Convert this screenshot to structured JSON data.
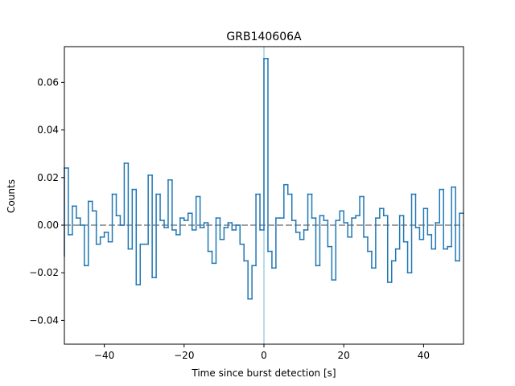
{
  "chart_data": {
    "type": "line",
    "title": "GRB140606A",
    "xlabel": "Time since burst detection [s]",
    "ylabel": "Counts",
    "xlim": [
      -50,
      50
    ],
    "ylim": [
      -0.05,
      0.075
    ],
    "x_ticks": [
      -40,
      -20,
      0,
      20,
      40
    ],
    "x_tick_labels": [
      "−40",
      "−20",
      "0",
      "20",
      "40"
    ],
    "y_ticks": [
      -0.04,
      -0.02,
      0.0,
      0.02,
      0.04,
      0.06
    ],
    "y_tick_labels": [
      "−0.04",
      "−0.02",
      "0.00",
      "0.02",
      "0.04",
      "0.06"
    ],
    "grid": false,
    "legend": "none",
    "step_series": {
      "style": "steps",
      "color": "#1f77b4",
      "x": [
        -50,
        -49,
        -48,
        -47,
        -46,
        -45,
        -44,
        -43,
        -42,
        -41,
        -40,
        -39,
        -38,
        -37,
        -36,
        -35,
        -34,
        -33,
        -32,
        -31,
        -30,
        -29,
        -28,
        -27,
        -26,
        -25,
        -24,
        -23,
        -22,
        -21,
        -20,
        -19,
        -18,
        -17,
        -16,
        -15,
        -14,
        -13,
        -12,
        -11,
        -10,
        -9,
        -8,
        -7,
        -6,
        -5,
        -4,
        -3,
        -2,
        -1,
        0,
        1,
        2,
        3,
        4,
        5,
        6,
        7,
        8,
        9,
        10,
        11,
        12,
        13,
        14,
        15,
        16,
        17,
        18,
        19,
        20,
        21,
        22,
        23,
        24,
        25,
        26,
        27,
        28,
        29,
        30,
        31,
        32,
        33,
        34,
        35,
        36,
        37,
        38,
        39,
        40,
        41,
        42,
        43,
        44,
        45,
        46,
        47,
        48,
        49
      ],
      "y": [
        0.024,
        -0.004,
        0.008,
        0.003,
        0.0,
        -0.017,
        0.01,
        0.006,
        -0.008,
        -0.005,
        -0.003,
        -0.007,
        0.013,
        0.004,
        0.0,
        0.026,
        -0.01,
        0.015,
        -0.025,
        -0.008,
        -0.008,
        0.021,
        -0.022,
        0.013,
        0.002,
        -0.001,
        0.019,
        -0.002,
        -0.004,
        0.003,
        0.002,
        0.005,
        -0.002,
        0.012,
        -0.001,
        0.001,
        -0.011,
        -0.016,
        0.003,
        -0.006,
        -0.001,
        0.001,
        -0.002,
        0.0,
        -0.008,
        -0.015,
        -0.031,
        -0.017,
        0.013,
        -0.002,
        0.07,
        -0.011,
        -0.018,
        0.003,
        0.003,
        0.017,
        0.013,
        0.002,
        -0.003,
        -0.006,
        -0.002,
        0.013,
        0.003,
        -0.017,
        0.004,
        0.002,
        -0.009,
        -0.023,
        0.002,
        0.006,
        0.001,
        -0.005,
        0.003,
        0.004,
        0.012,
        -0.005,
        -0.011,
        -0.018,
        0.003,
        0.007,
        0.004,
        -0.024,
        -0.015,
        -0.01,
        0.004,
        -0.007,
        -0.02,
        0.013,
        -0.001,
        -0.006,
        0.007,
        -0.004,
        -0.01,
        0.001,
        0.015,
        -0.01,
        -0.009,
        0.016,
        -0.015,
        0.005
      ]
    },
    "reference_lines": [
      {
        "orientation": "horizontal",
        "value": 0.0,
        "style": "dashed",
        "color": "#808080"
      },
      {
        "orientation": "vertical",
        "value": 0,
        "style": "solid",
        "color": "#a6cde2"
      }
    ]
  }
}
